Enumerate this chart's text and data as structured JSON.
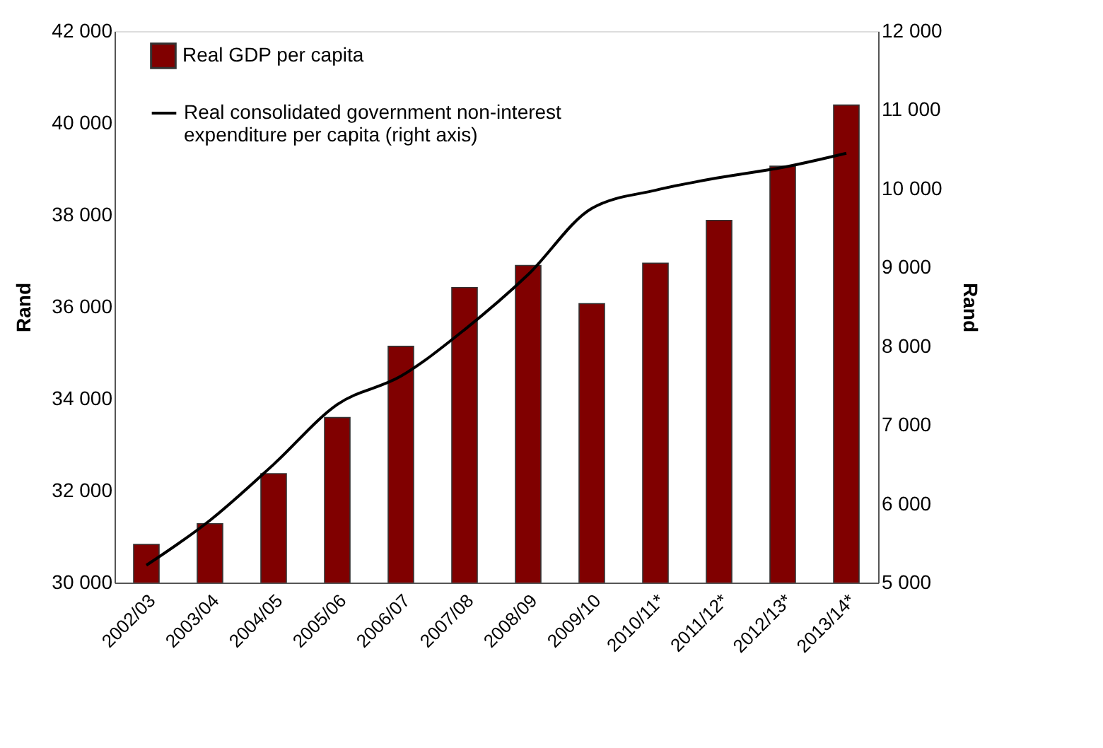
{
  "chart_data": {
    "type": "bar",
    "categories": [
      "2002/03",
      "2003/04",
      "2004/05",
      "2005/06",
      "2006/07",
      "2007/08",
      "2008/09",
      "2009/10",
      "2010/11*",
      "2011/12*",
      "2012/13*",
      "2013/14*"
    ],
    "series": [
      {
        "name": "Real GDP per capita",
        "color": "#800000",
        "values": [
          30830,
          31280,
          32370,
          33590,
          35140,
          36420,
          36900,
          36070,
          36950,
          37880,
          39060,
          40390
        ]
      },
      {
        "name": "Real consolidated government non-interest expenditure per capita (right axis)",
        "type": "line",
        "axis": "y2",
        "color": "#000000",
        "values": [
          5220,
          5790,
          6500,
          7260,
          7620,
          8210,
          8910,
          9750,
          9980,
          10140,
          10270,
          10450
        ]
      }
    ],
    "ylabel": "Rand",
    "y2label": "Rand",
    "ylim": [
      30000,
      42000
    ],
    "yticks": [
      {
        "value": 30000,
        "label": "30 000"
      },
      {
        "value": 32000,
        "label": "32 000"
      },
      {
        "value": 34000,
        "label": "34 000"
      },
      {
        "value": 36000,
        "label": "36 000"
      },
      {
        "value": 38000,
        "label": "38 000"
      },
      {
        "value": 40000,
        "label": "40 000"
      },
      {
        "value": 42000,
        "label": "42 000"
      }
    ],
    "y2lim": [
      5000,
      12000
    ],
    "y2ticks": [
      {
        "value": 5000,
        "label": "5 000"
      },
      {
        "value": 6000,
        "label": "6 000"
      },
      {
        "value": 7000,
        "label": "7 000"
      },
      {
        "value": 8000,
        "label": "8 000"
      },
      {
        "value": 9000,
        "label": "9 000"
      },
      {
        "value": 10000,
        "label": "10 000"
      },
      {
        "value": 11000,
        "label": "11 000"
      },
      {
        "value": 12000,
        "label": "12 000"
      }
    ],
    "legend": "top left",
    "grid": false,
    "marker": "none",
    "line_style": "solid"
  }
}
